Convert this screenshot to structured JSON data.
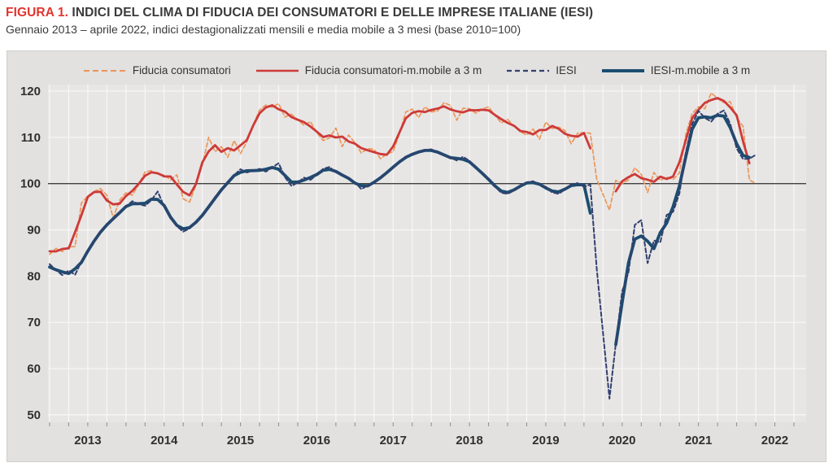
{
  "figure": {
    "label": "FIGURA 1.",
    "title": "INDICI DEL CLIMA DI FIDUCIA DEI CONSUMATORI E DELLE IMPRESE ITALIANE (IESI)",
    "subtitle": "Gennaio 2013 – aprile 2022, indici destagionalizzati mensili e media mobile a 3 mesi (base 2010=100)"
  },
  "colors": {
    "title_accent": "#e0352f",
    "text": "#3a3a3a",
    "chart_background": "#e2e1e0",
    "plot_background": "#e7e6e5",
    "gridline": "#f8f7f6",
    "reference_line": "#3f3f3f",
    "consumer_monthly": "#eb9659",
    "consumer_ma": "#cd3a38",
    "iesi_monthly": "#33406f",
    "iesi_ma": "#1c4d6f"
  },
  "chart_data": {
    "type": "line",
    "title": "Indici del clima di fiducia dei consumatori e delle imprese italiane (IESI)",
    "x_start": "2013-01",
    "x_end": "2022-04",
    "x_frequency": "monthly",
    "missing_months": [
      "2020-04"
    ],
    "x_year_labels": [
      "2013",
      "2014",
      "2015",
      "2016",
      "2017",
      "2018",
      "2019",
      "2020",
      "2021",
      "2022"
    ],
    "y_ticks": [
      50,
      60,
      70,
      80,
      90,
      100,
      110,
      120
    ],
    "ylim": [
      48.4,
      121.4
    ],
    "reference_line": 100,
    "grid": "quarterly vertical + decade horizontal, on",
    "legend_position": "top",
    "series": [
      {
        "name": "Fiducia consumatori",
        "style": "dashed",
        "color": "#eb9659",
        "values": [
          84.7,
          86.0,
          85.3,
          86.3,
          86.4,
          95.8,
          97.3,
          98.3,
          98.9,
          97.5,
          92.6,
          96.4,
          98.0,
          97.5,
          99.8,
          102.5,
          102.8,
          102.0,
          101.9,
          100.8,
          101.9,
          96.7,
          96.0,
          99.7,
          104.0,
          110.0,
          106.9,
          108.0,
          105.7,
          109.3,
          106.5,
          109.0,
          112.7,
          115.9,
          117.0,
          116.5,
          117.3,
          114.4,
          115.0,
          113.8,
          112.6,
          113.4,
          111.0,
          109.3,
          109.9,
          112.0,
          108.0,
          110.5,
          108.8,
          106.6,
          107.6,
          107.4,
          105.4,
          106.4,
          106.9,
          110.8,
          115.5,
          116.1,
          114.3,
          116.6,
          115.5,
          115.7,
          117.5,
          116.9,
          113.7,
          116.3,
          116.2,
          115.2,
          116.1,
          116.6,
          114.8,
          113.1,
          113.9,
          112.4,
          111.2,
          110.5,
          111.8,
          109.6,
          113.3,
          111.9,
          112.2,
          111.5,
          108.6,
          110.9,
          111.0,
          110.9,
          101.0,
          null,
          94.3,
          100.7,
          100.0,
          100.8,
          103.4,
          102.0,
          98.1,
          102.4,
          100.7,
          101.4,
          100.9,
          102.3,
          110.6,
          115.1,
          116.6,
          116.2,
          119.6,
          118.4,
          117.5,
          117.7,
          114.2,
          112.4,
          100.8,
          100.0
        ]
      },
      {
        "name": "Fiducia consumatori-m.mobile a 3 m",
        "style": "solid",
        "color": "#cd3a38",
        "derived_from": "Fiducia consumatori",
        "derivation": "centered 3-month moving average"
      },
      {
        "name": "IESI",
        "style": "dashed",
        "color": "#33406f",
        "values": [
          82.6,
          81.3,
          80.2,
          81.2,
          80.3,
          83.2,
          85.4,
          87.6,
          89.7,
          91.3,
          92.2,
          93.8,
          95.1,
          96.2,
          95.6,
          95.2,
          96.4,
          98.3,
          95.0,
          92.5,
          90.8,
          89.6,
          90.3,
          91.6,
          93.0,
          94.8,
          97.1,
          98.5,
          100.3,
          101.8,
          103.1,
          102.4,
          102.8,
          103.2,
          102.6,
          103.5,
          104.4,
          101.4,
          99.5,
          100.2,
          101.3,
          100.8,
          101.9,
          103.2,
          103.6,
          102.4,
          101.9,
          101.2,
          100.3,
          98.8,
          99.6,
          100.1,
          101.2,
          102.4,
          103.5,
          104.8,
          105.8,
          106.4,
          106.8,
          107.3,
          107.4,
          106.8,
          106.2,
          105.6,
          105.0,
          105.8,
          104.9,
          103.4,
          102.2,
          101.1,
          99.4,
          98.0,
          97.8,
          98.5,
          99.6,
          100.3,
          100.5,
          99.8,
          99.3,
          98.1,
          97.8,
          98.7,
          99.9,
          100.1,
          99.3,
          99.8,
          81.7,
          null,
          53.5,
          65.4,
          76.7,
          80.8,
          91.1,
          92.1,
          82.8,
          87.7,
          87.3,
          93.2,
          93.9,
          97.9,
          106.7,
          112.8,
          115.7,
          114.2,
          113.4,
          115.1,
          115.8,
          112.9,
          107.6,
          105.3,
          105.4,
          106.2
        ]
      },
      {
        "name": "IESI-m.mobile a 3 m",
        "style": "solid",
        "color": "#1c4d6f",
        "derived_from": "IESI",
        "derivation": "centered 3-month moving average"
      }
    ]
  }
}
